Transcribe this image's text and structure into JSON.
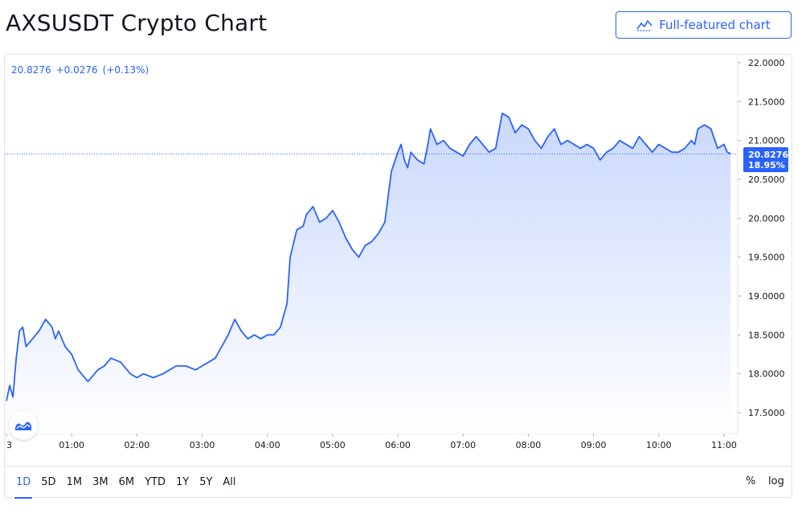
{
  "header": {
    "title": "AXSUSDT Crypto Chart",
    "full_chart_label": "Full-featured chart"
  },
  "legend": {
    "price": "20.8276",
    "change": "+0.0276",
    "change_pct": "(+0.13%)"
  },
  "price_tag": {
    "price": "20.8276",
    "percent": "18.95%"
  },
  "colors": {
    "accent": "#2962ff",
    "line": "#2962ff",
    "fill_top": "#c9d8fb",
    "fill_bottom": "#ffffff",
    "grid_border": "#e0e3eb"
  },
  "toolbar": {
    "ranges": [
      "1D",
      "5D",
      "1M",
      "3M",
      "6M",
      "YTD",
      "1Y",
      "5Y",
      "All"
    ],
    "active_range": "1D",
    "percent_label": "%",
    "log_label": "log"
  },
  "chart_data": {
    "type": "area",
    "title": "AXSUSDT Crypto Chart",
    "xlabel": "",
    "ylabel": "",
    "ylim": [
      17.1,
      22.1
    ],
    "y_ticks": [
      "22.0000",
      "21.5000",
      "21.0000",
      "20.5000",
      "20.0000",
      "19.5000",
      "19.0000",
      "18.5000",
      "18.0000",
      "17.5000"
    ],
    "x_ticks": [
      "3",
      "01:00",
      "02:00",
      "03:00",
      "04:00",
      "05:00",
      "06:00",
      "07:00",
      "08:00",
      "09:00",
      "10:00",
      "11:00"
    ],
    "x_tick_hours": [
      0,
      1,
      2,
      3,
      4,
      5,
      6,
      7,
      8,
      9,
      10,
      11
    ],
    "x_range_hours": [
      0,
      11.15
    ],
    "last_price": 20.8276,
    "series": [
      {
        "x": [
          0.0,
          0.05,
          0.1,
          0.15,
          0.2,
          0.25,
          0.3,
          0.4,
          0.5,
          0.6,
          0.7,
          0.75,
          0.8,
          0.9,
          1.0,
          1.1,
          1.25,
          1.4,
          1.5,
          1.6,
          1.75,
          1.9,
          2.0,
          2.1,
          2.25,
          2.4,
          2.5,
          2.6,
          2.75,
          2.9,
          3.0,
          3.1,
          3.2,
          3.3,
          3.4,
          3.5,
          3.6,
          3.7,
          3.8,
          3.9,
          4.0,
          4.1,
          4.2,
          4.3,
          4.35,
          4.45,
          4.55,
          4.6,
          4.7,
          4.8,
          4.9,
          5.0,
          5.1,
          5.2,
          5.3,
          5.4,
          5.5,
          5.6,
          5.7,
          5.8,
          5.9,
          6.0,
          6.05,
          6.1,
          6.15,
          6.2,
          6.3,
          6.4,
          6.45,
          6.5,
          6.6,
          6.7,
          6.8,
          6.9,
          7.0,
          7.1,
          7.2,
          7.3,
          7.4,
          7.5,
          7.6,
          7.7,
          7.8,
          7.9,
          8.0,
          8.1,
          8.2,
          8.3,
          8.4,
          8.5,
          8.6,
          8.7,
          8.8,
          8.9,
          9.0,
          9.1,
          9.2,
          9.3,
          9.4,
          9.5,
          9.6,
          9.7,
          9.8,
          9.9,
          10.0,
          10.1,
          10.2,
          10.3,
          10.4,
          10.5,
          10.55,
          10.6,
          10.7,
          10.8,
          10.9,
          11.0,
          11.05,
          11.1
        ],
        "values": [
          17.65,
          17.85,
          17.7,
          18.2,
          18.55,
          18.6,
          18.35,
          18.45,
          18.55,
          18.7,
          18.6,
          18.45,
          18.55,
          18.35,
          18.25,
          18.05,
          17.9,
          18.05,
          18.1,
          18.2,
          18.15,
          18.0,
          17.95,
          18.0,
          17.95,
          18.0,
          18.05,
          18.1,
          18.1,
          18.05,
          18.1,
          18.15,
          18.2,
          18.35,
          18.5,
          18.7,
          18.55,
          18.45,
          18.5,
          18.45,
          18.5,
          18.5,
          18.6,
          18.9,
          19.5,
          19.85,
          19.9,
          20.05,
          20.15,
          19.95,
          20.0,
          20.1,
          19.95,
          19.75,
          19.6,
          19.5,
          19.65,
          19.7,
          19.8,
          19.95,
          20.6,
          20.85,
          20.95,
          20.75,
          20.65,
          20.85,
          20.75,
          20.7,
          20.9,
          21.15,
          20.95,
          21.0,
          20.9,
          20.85,
          20.8,
          20.95,
          21.05,
          20.95,
          20.85,
          20.9,
          21.35,
          21.3,
          21.1,
          21.2,
          21.15,
          21.0,
          20.9,
          21.05,
          21.15,
          20.95,
          21.0,
          20.95,
          20.9,
          20.95,
          20.9,
          20.75,
          20.85,
          20.9,
          21.0,
          20.95,
          20.9,
          21.05,
          20.95,
          20.85,
          20.95,
          20.9,
          20.85,
          20.85,
          20.9,
          21.0,
          20.95,
          21.15,
          21.2,
          21.15,
          20.9,
          20.95,
          20.85,
          20.83
        ]
      }
    ]
  }
}
